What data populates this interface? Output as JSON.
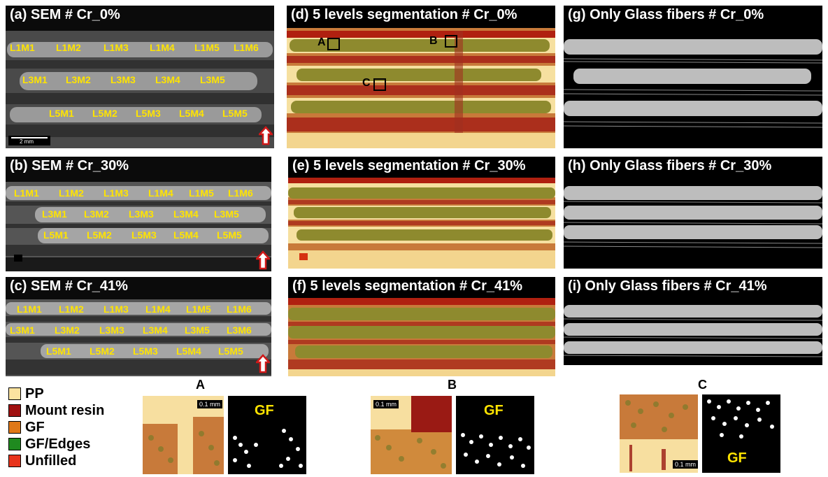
{
  "panels": {
    "a": {
      "title": "(a) SEM # Cr_0%",
      "scale": "2 mm",
      "rows": [
        [
          "L1M1",
          "L1M2",
          "L1M3",
          "L1M4",
          "L1M5",
          "L1M6"
        ],
        [
          "L3M1",
          "L3M2",
          "L3M3",
          "L3M4",
          "L3M5"
        ],
        [
          "L5M1",
          "L5M2",
          "L5M3",
          "L5M4",
          "L5M5"
        ]
      ]
    },
    "b": {
      "title": "(b) SEM # Cr_30%",
      "rows": [
        [
          "L1M1",
          "L1M2",
          "L1M3",
          "L1M4",
          "L1M5",
          "L1M6"
        ],
        [
          "L3M1",
          "L3M2",
          "L3M3",
          "L3M4",
          "L3M5"
        ],
        [
          "L5M1",
          "L5M2",
          "L5M3",
          "L5M4",
          "L5M5"
        ]
      ]
    },
    "c": {
      "title": "(c) SEM # Cr_41%",
      "rows": [
        [
          "L1M1",
          "L1M2",
          "L1M3",
          "L1M4",
          "L1M5",
          "L1M6"
        ],
        [
          "L3M1",
          "L3M2",
          "L3M3",
          "L3M4",
          "L3M5",
          "L3M6"
        ],
        [
          "L5M1",
          "L5M2",
          "L5M3",
          "L5M4",
          "L5M5"
        ]
      ]
    },
    "d": {
      "title": "(d) 5 levels segmentation # Cr_0%",
      "boxes": [
        "A",
        "B",
        "C"
      ]
    },
    "e": {
      "title": "(e) 5 levels segmentation # Cr_30%"
    },
    "f": {
      "title": "(f) 5 levels segmentation # Cr_41%"
    },
    "g": {
      "title": "(g) Only Glass fibers # Cr_0%"
    },
    "h": {
      "title": "(h) Only Glass fibers # Cr_30%"
    },
    "i": {
      "title": "(i) Only Glass fibers # Cr_41%"
    }
  },
  "legend": [
    {
      "label": "PP",
      "color": "#fbe3a0"
    },
    {
      "label": "Mount resin",
      "color": "#a01010"
    },
    {
      "label": "GF",
      "color": "#e07818"
    },
    {
      "label": "GF/Edges",
      "color": "#1f8a1f"
    },
    {
      "label": "Unfilled",
      "color": "#e8341c"
    }
  ],
  "zooms": {
    "A": {
      "letter": "A",
      "gf": "GF",
      "scale": "0.1 mm"
    },
    "B": {
      "letter": "B",
      "gf": "GF",
      "scale": "0.1 mm"
    },
    "C": {
      "letter": "C",
      "gf": "GF",
      "scale": "0.1 mm"
    }
  },
  "colors": {
    "label_yellow": "#ffe400",
    "pp": "#fbe3a0",
    "gf_green": "#8a8a2a",
    "resin": "#a01010"
  }
}
